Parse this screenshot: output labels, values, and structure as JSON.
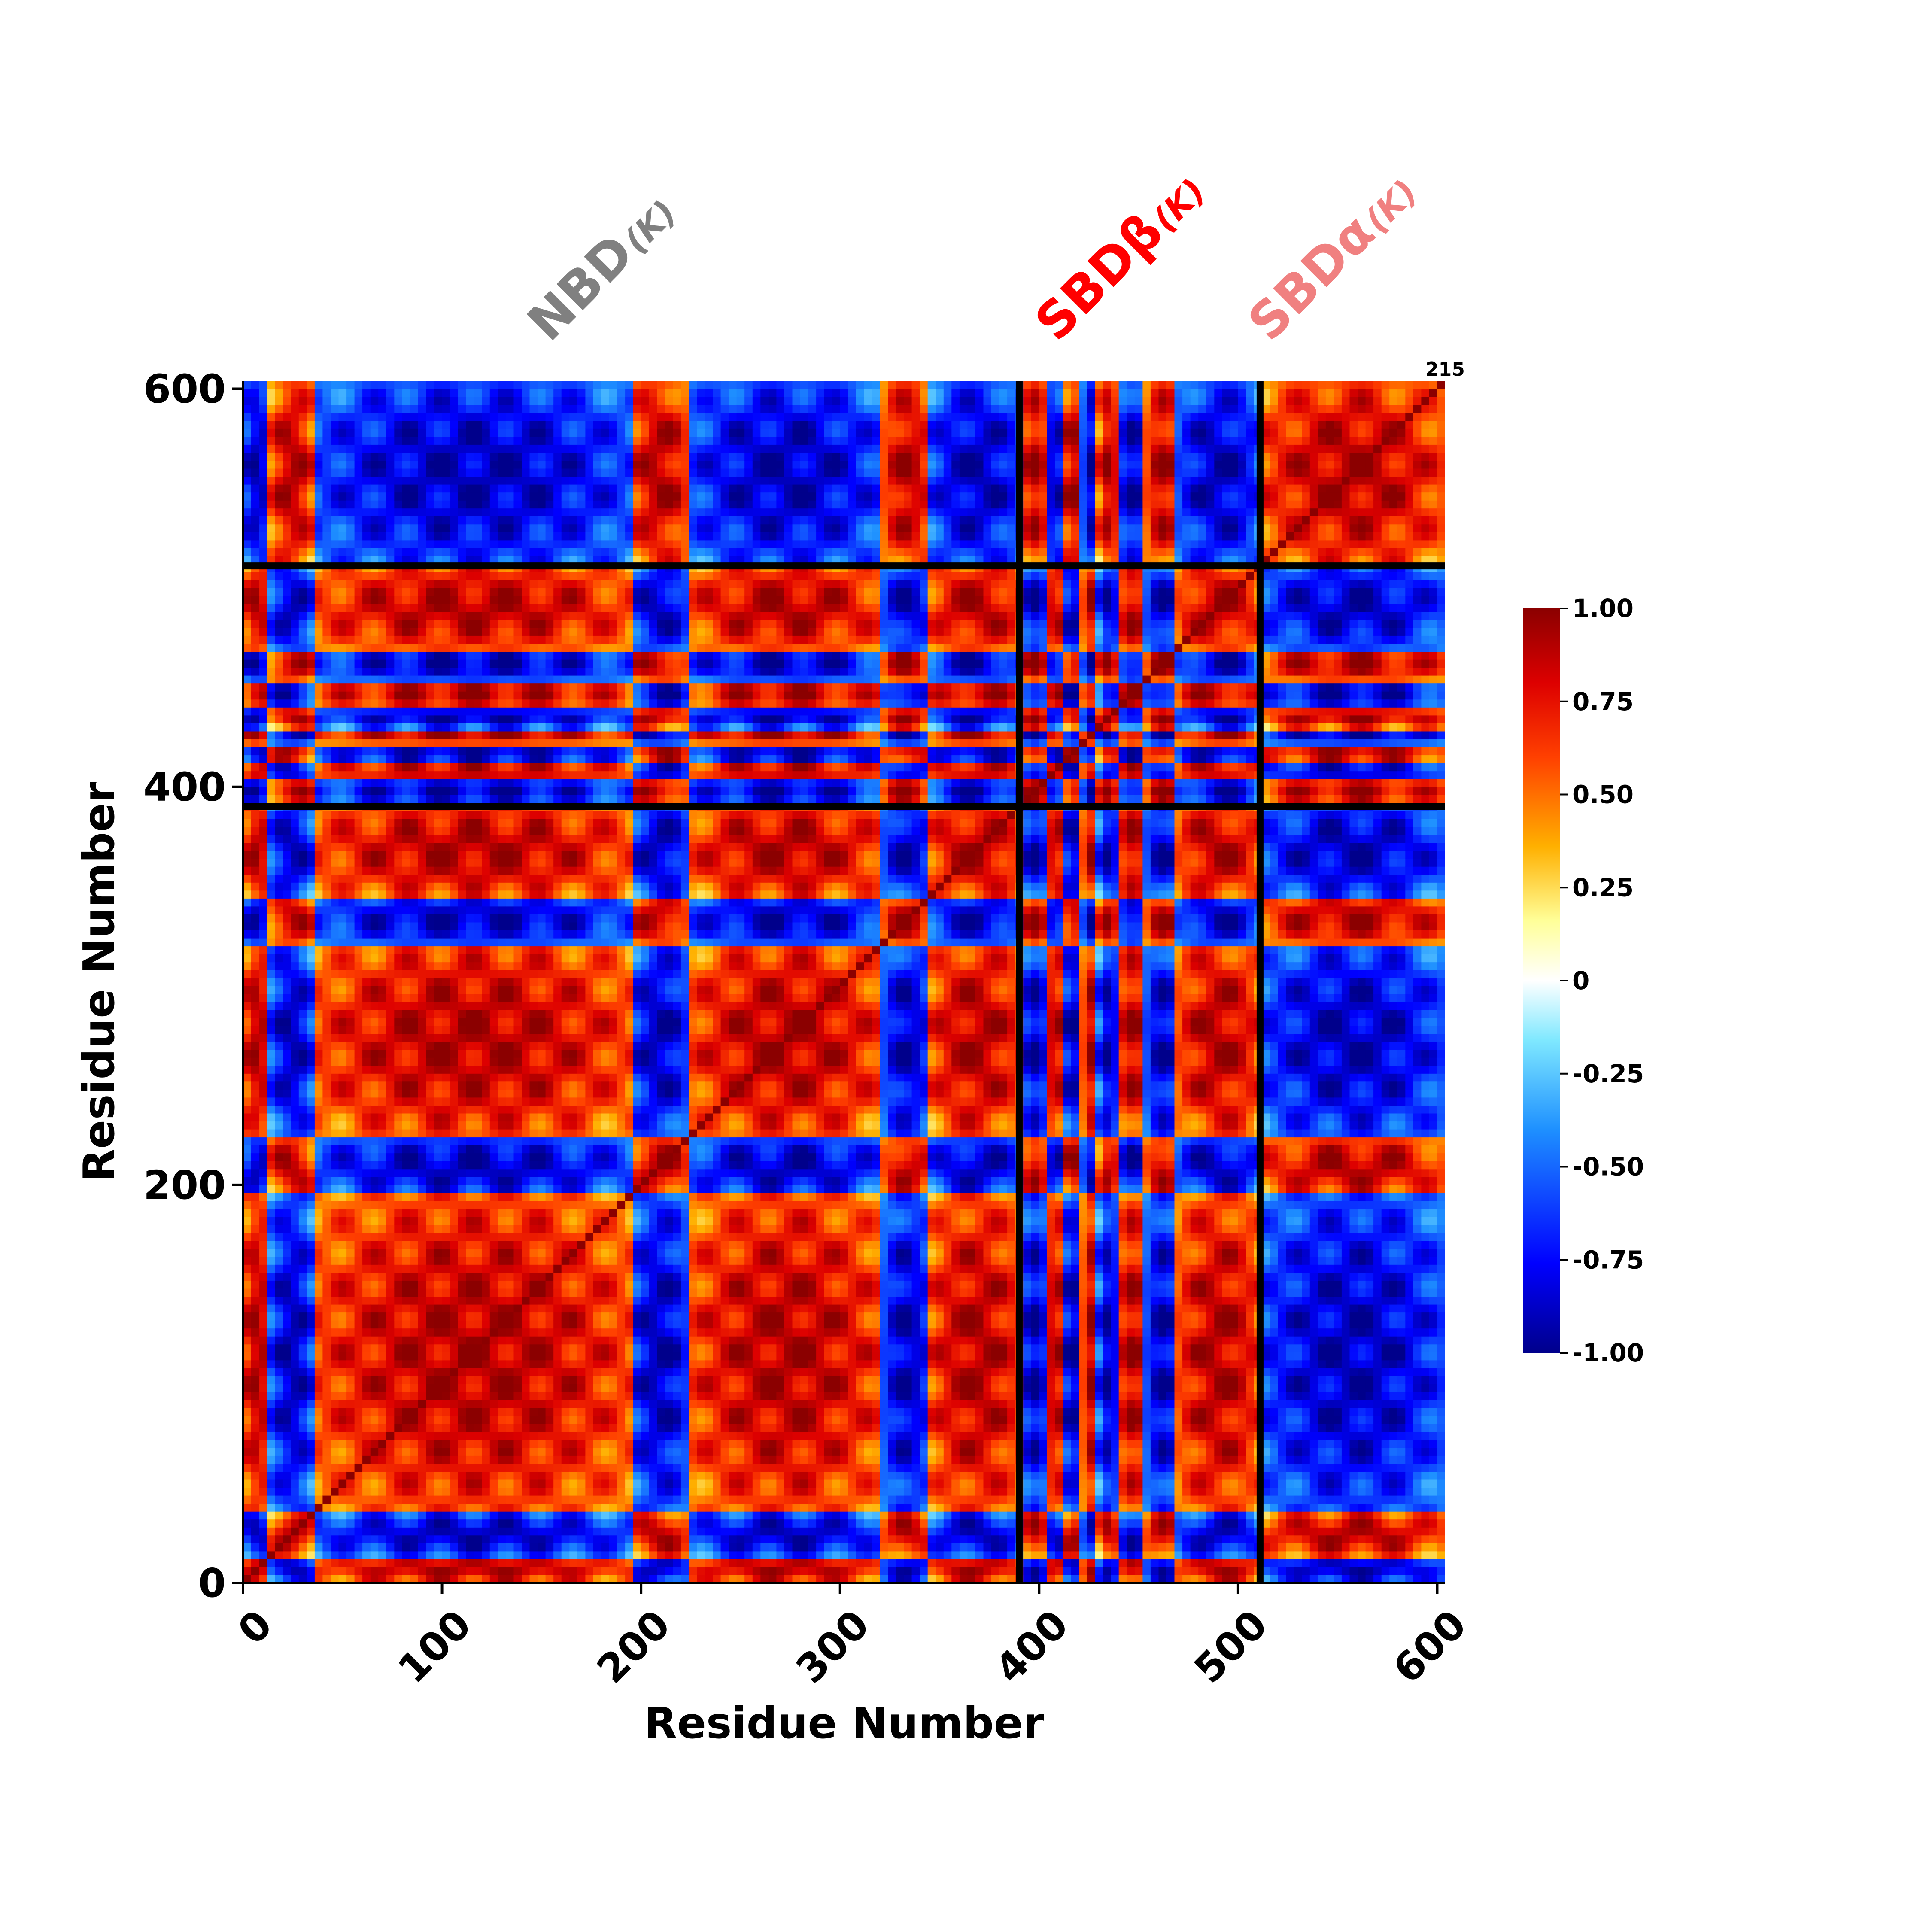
{
  "chart_data": {
    "type": "heatmap",
    "title": "",
    "xlabel": "Residue Number",
    "ylabel": "Residue Number",
    "xlim": [
      0,
      604
    ],
    "ylim": [
      0,
      604
    ],
    "x_ticks": [
      "0",
      "100",
      "200",
      "300",
      "400",
      "500",
      "600"
    ],
    "y_ticks": [
      "0",
      "200",
      "400",
      "600"
    ],
    "x_tick_values": [
      0,
      100,
      200,
      300,
      400,
      500,
      600
    ],
    "y_tick_values": [
      0,
      200,
      400,
      600
    ],
    "corner_label": "215",
    "domain_boundaries": [
      390,
      511
    ],
    "domain_labels": [
      {
        "name": "NBD",
        "subscript": "(K)",
        "color": "#808080",
        "center": 195
      },
      {
        "name": "SBDβ",
        "subscript": "(K)",
        "color": "#ff0000",
        "center": 450
      },
      {
        "name": "SBDα",
        "subscript": "(K)",
        "color": "#f08080",
        "center": 557
      }
    ],
    "colorbar": {
      "colormap": "jet-like diverging (dark blue - blue - cyan - white - yellow - orange - red - dark red)",
      "range": [
        -1.0,
        1.0
      ],
      "ticks": [
        "1.00",
        "0.75",
        "0.50",
        "0.25",
        "0",
        "-0.25",
        "-0.50",
        "-0.75",
        "-1.00"
      ],
      "tick_values": [
        1.0,
        0.75,
        0.5,
        0.25,
        0,
        -0.25,
        -0.5,
        -0.75,
        -1.0
      ]
    },
    "segments": [
      {
        "start": 0,
        "end": 14,
        "sign": 1
      },
      {
        "start": 14,
        "end": 35,
        "sign": -1
      },
      {
        "start": 35,
        "end": 195,
        "sign": 1
      },
      {
        "start": 195,
        "end": 224,
        "sign": -1
      },
      {
        "start": 224,
        "end": 322,
        "sign": 1
      },
      {
        "start": 322,
        "end": 345,
        "sign": -1
      },
      {
        "start": 345,
        "end": 392,
        "sign": 1
      },
      {
        "start": 392,
        "end": 404,
        "sign": -1
      },
      {
        "start": 404,
        "end": 412,
        "sign": 1
      },
      {
        "start": 412,
        "end": 422,
        "sign": -1
      },
      {
        "start": 422,
        "end": 430,
        "sign": 1
      },
      {
        "start": 430,
        "end": 440,
        "sign": -1
      },
      {
        "start": 440,
        "end": 454,
        "sign": 1
      },
      {
        "start": 454,
        "end": 470,
        "sign": -1
      },
      {
        "start": 470,
        "end": 511,
        "sign": 1
      },
      {
        "start": 511,
        "end": 604,
        "sign": -1
      }
    ]
  }
}
